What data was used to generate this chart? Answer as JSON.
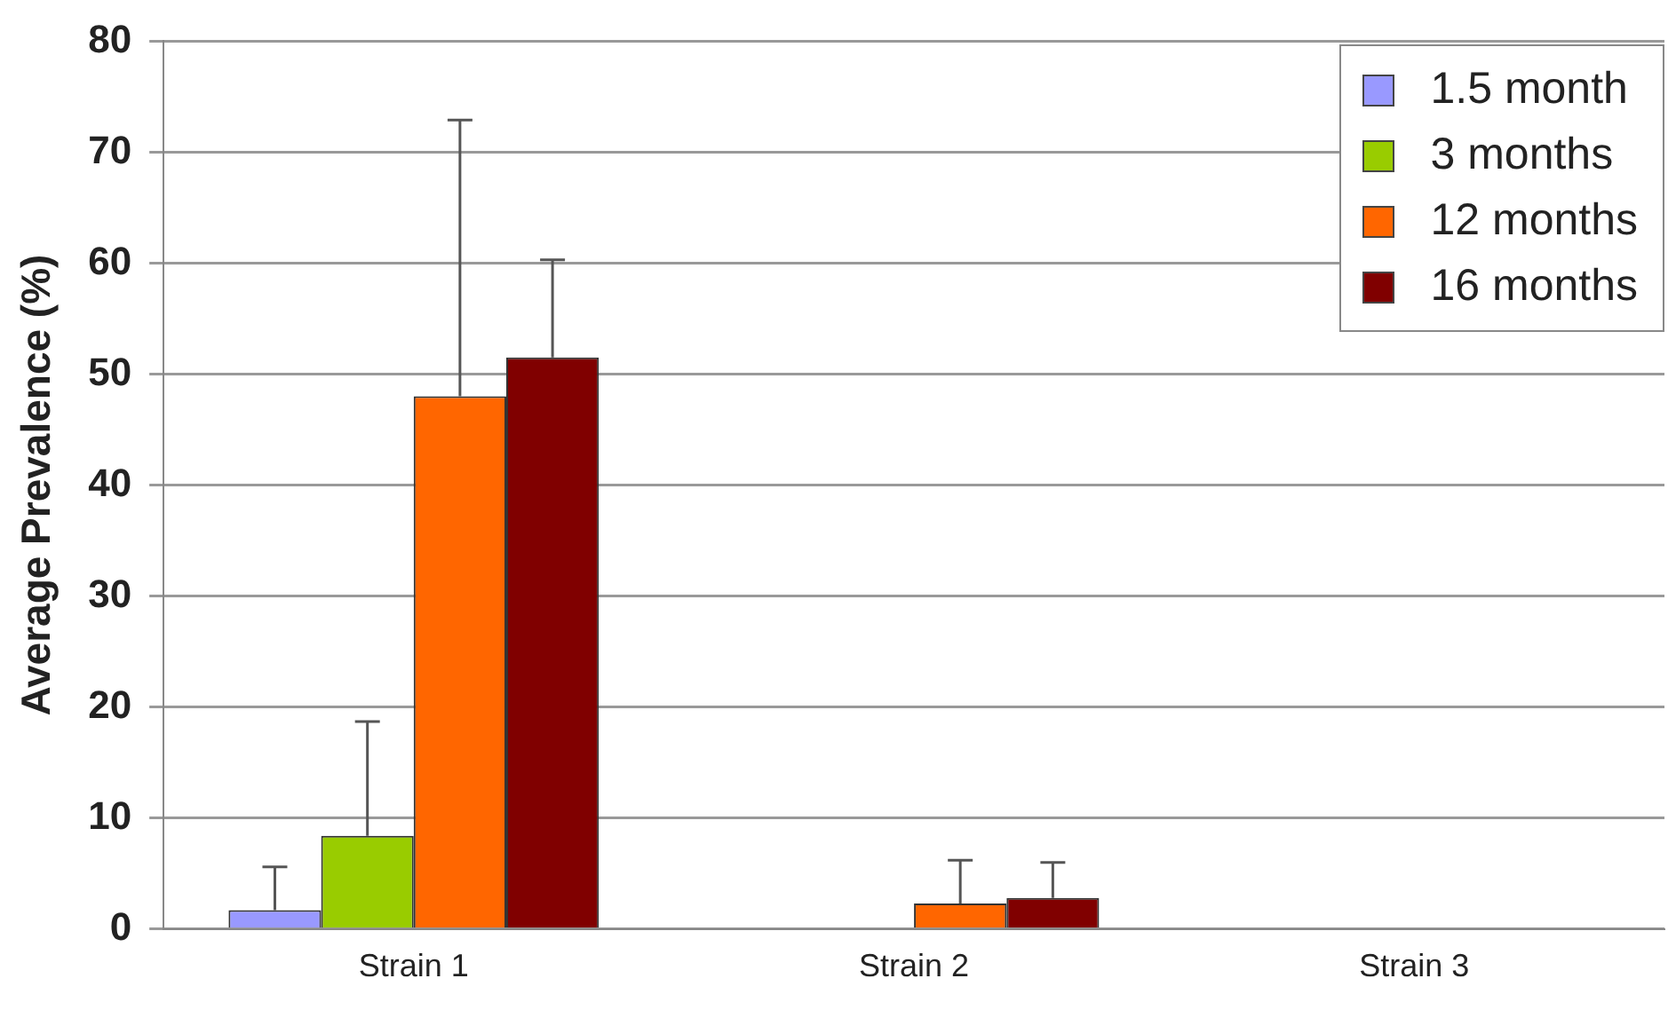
{
  "chart_data": {
    "type": "bar",
    "ylabel": "Average Prevalence (%)",
    "categories": [
      "Strain 1",
      "Strain 2",
      "Strain 3"
    ],
    "series": [
      {
        "name": "1.5 month",
        "color": "#9999ff",
        "values": [
          1.7,
          0,
          0
        ],
        "errors": [
          [
            1.7,
            5.6
          ],
          null,
          null
        ]
      },
      {
        "name": "3 months",
        "color": "#99cc00",
        "values": [
          8.4,
          0,
          0
        ],
        "errors": [
          [
            8.4,
            18.7
          ],
          null,
          null
        ]
      },
      {
        "name": "12 months",
        "color": "#ff6600",
        "values": [
          48.0,
          2.3,
          0
        ],
        "errors": [
          [
            48.0,
            72.9
          ],
          [
            2.3,
            6.2
          ],
          null
        ]
      },
      {
        "name": "16 months",
        "color": "#800000",
        "values": [
          51.5,
          2.8,
          0
        ],
        "errors": [
          [
            51.5,
            60.3
          ],
          [
            2.8,
            6.0
          ],
          null
        ]
      }
    ],
    "ylim": [
      0,
      80
    ],
    "yticks": [
      0,
      10,
      20,
      30,
      40,
      50,
      60,
      70,
      80
    ],
    "grid": "y",
    "legend": "top right"
  }
}
